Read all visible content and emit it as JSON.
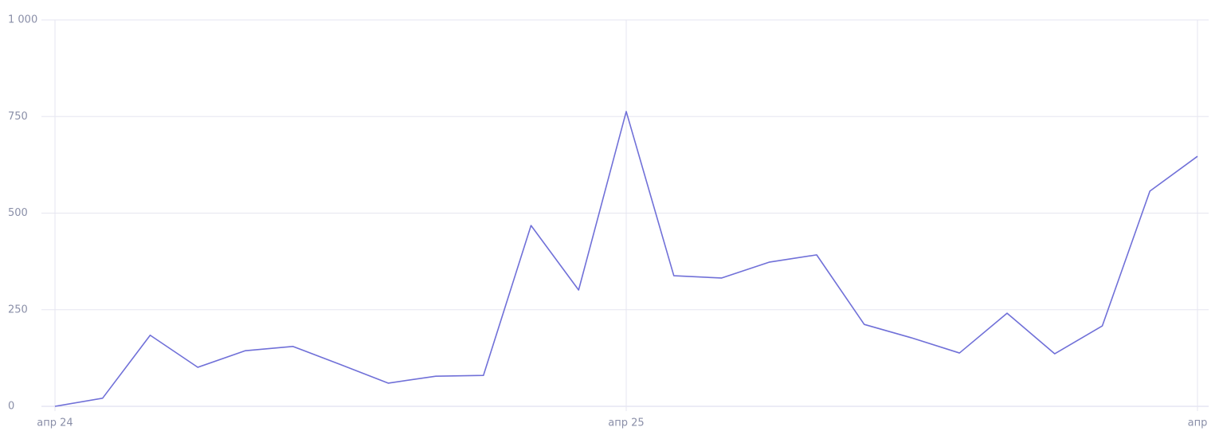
{
  "chart_data": {
    "type": "line",
    "categories": [
      "апр 24",
      null,
      null,
      null,
      null,
      null,
      null,
      null,
      null,
      null,
      null,
      null,
      "апр 25",
      null,
      null,
      null,
      null,
      null,
      null,
      null,
      null,
      null,
      null,
      null,
      "апр"
    ],
    "series": [
      {
        "color": "#7070d8",
        "values": [
          0,
          21,
          184,
          101,
          144,
          155,
          108,
          60,
          78,
          80,
          468,
          301,
          763,
          338,
          332,
          373,
          392,
          212,
          177,
          138,
          241,
          136,
          208,
          557,
          647
        ]
      }
    ],
    "ylim": [
      0,
      1000
    ],
    "yticks": [
      0,
      250,
      500,
      750,
      {
        "value": 1000,
        "label": "1 000"
      }
    ],
    "grid": true
  }
}
